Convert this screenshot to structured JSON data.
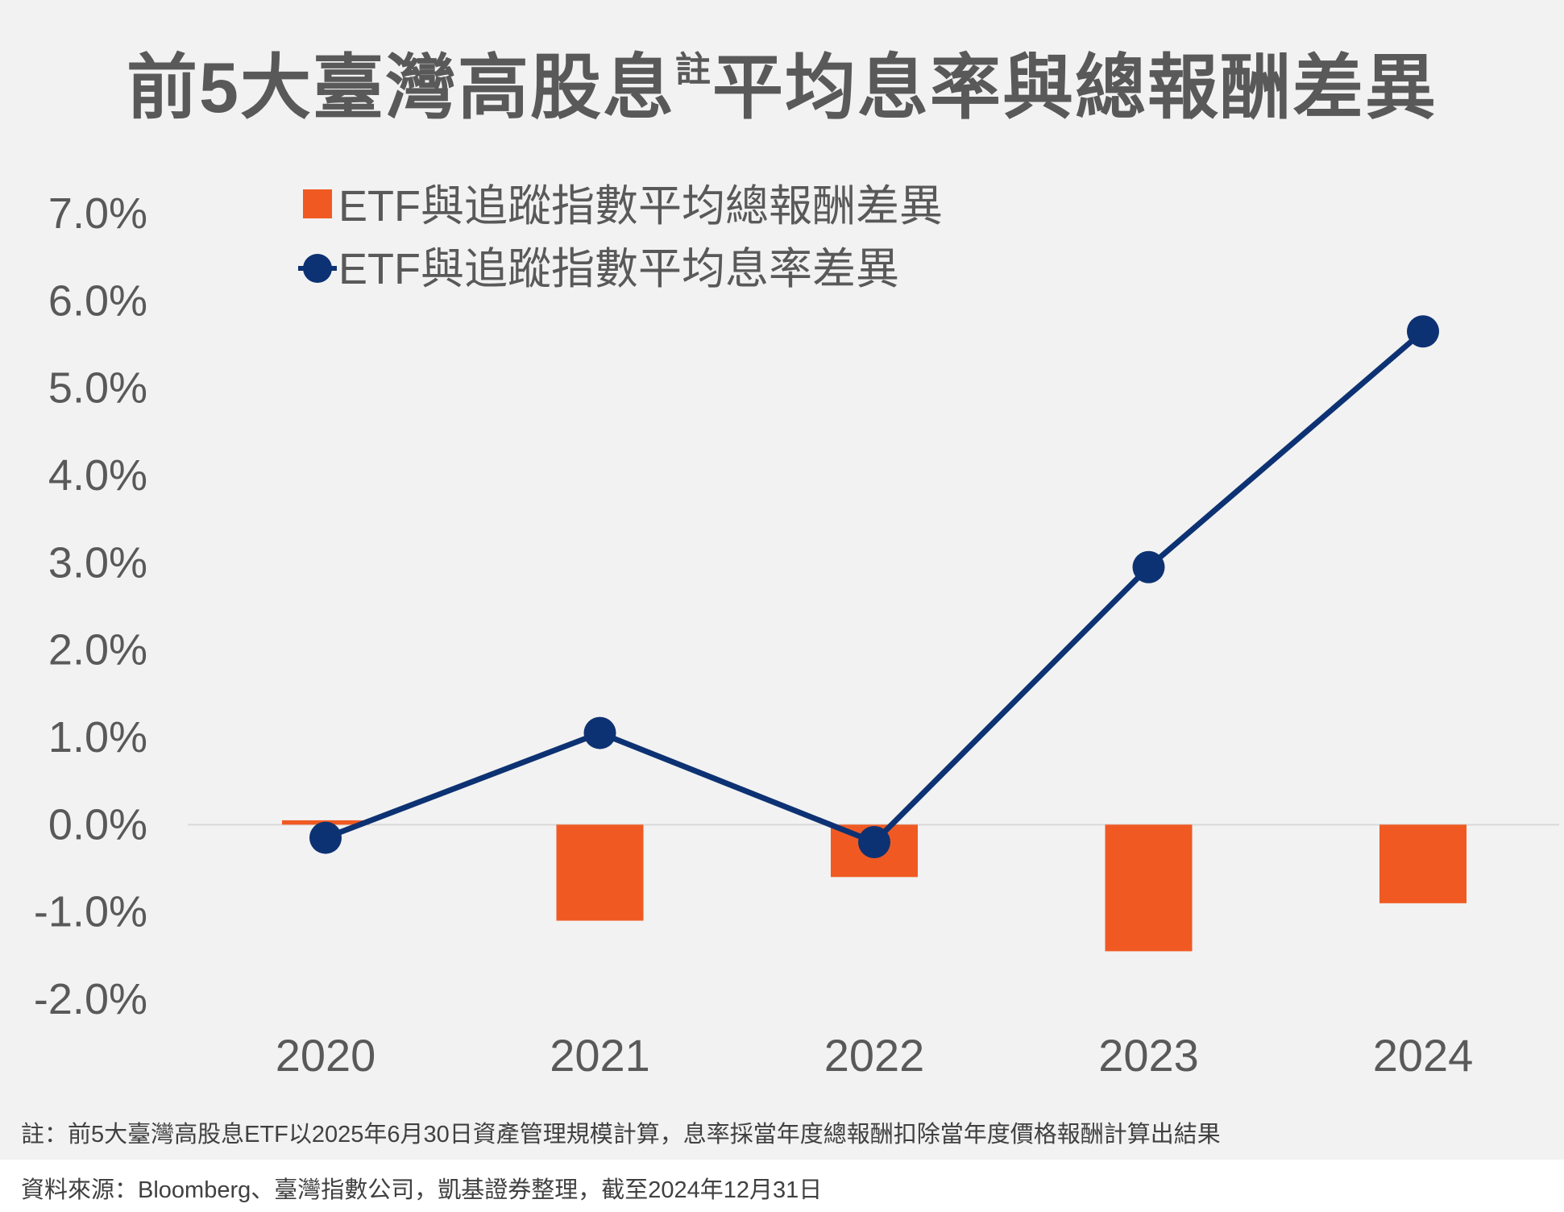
{
  "title": {
    "main": "前5大臺灣高股息",
    "sup": "註",
    "rest": "平均息率與總報酬差異"
  },
  "chart_data": {
    "type": "bar+line",
    "categories": [
      "2020",
      "2021",
      "2022",
      "2023",
      "2024"
    ],
    "ylim": [
      -2.0,
      7.0
    ],
    "ytick_values": [
      7.0,
      6.0,
      5.0,
      4.0,
      3.0,
      2.0,
      1.0,
      0.0,
      -1.0,
      -2.0
    ],
    "yticks": [
      "7.0%",
      "6.0%",
      "5.0%",
      "4.0%",
      "3.0%",
      "2.0%",
      "1.0%",
      "0.0%",
      "-1.0%",
      "-2.0%"
    ],
    "grid": false,
    "legend_position": "top-left",
    "series": [
      {
        "name": "ETF與追蹤指數平均總報酬差異",
        "type": "bar",
        "color": "#f05a22",
        "values": [
          0.05,
          -1.1,
          -0.6,
          -1.45,
          -0.9
        ]
      },
      {
        "name": "ETF與追蹤指數平均息率差異",
        "type": "line",
        "color": "#0d3273",
        "values": [
          -0.15,
          1.05,
          -0.2,
          2.95,
          5.65
        ]
      }
    ]
  },
  "note": "註：前5大臺灣高股息ETF以2025年6月30日資產管理規模計算，息率採當年度總報酬扣除當年度價格報酬計算出結果",
  "source": "資料來源：Bloomberg、臺灣指數公司，凱基證券整理，截至2024年12月31日"
}
